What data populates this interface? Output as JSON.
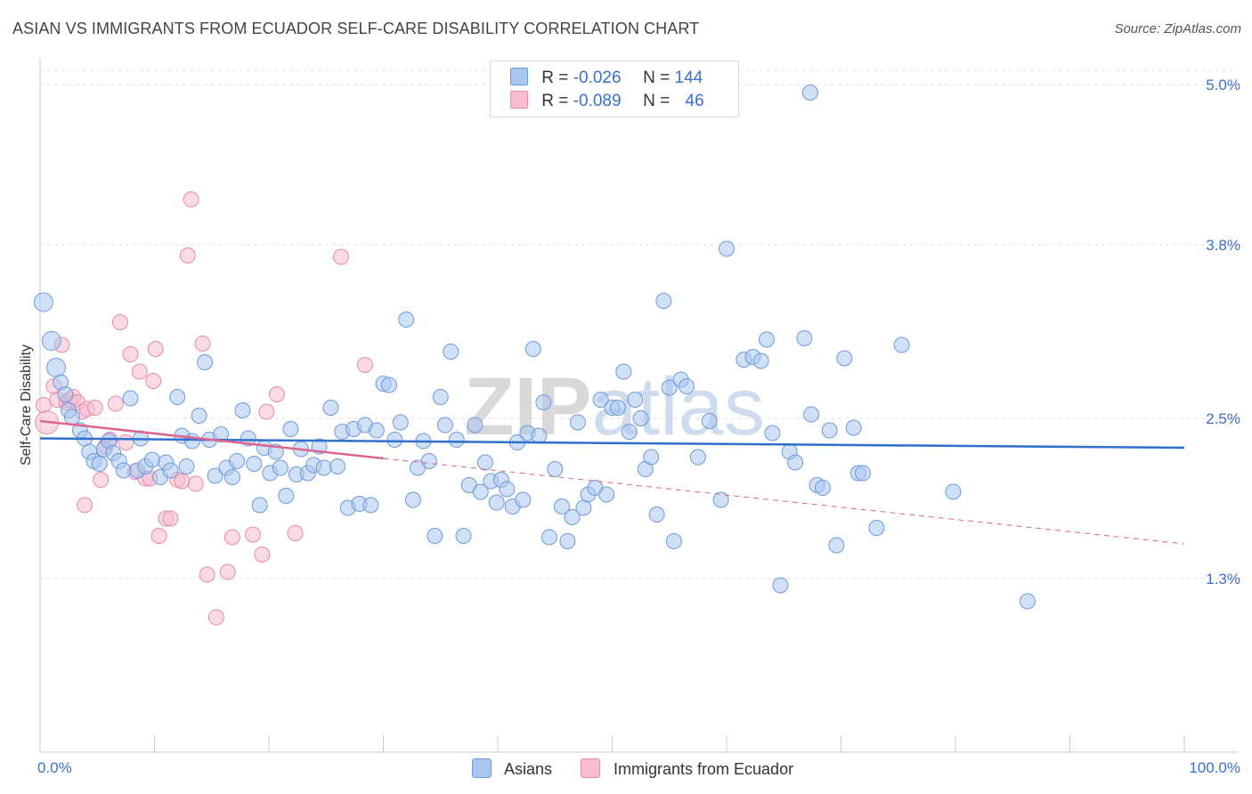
{
  "title": "ASIAN VS IMMIGRANTS FROM ECUADOR SELF-CARE DISABILITY CORRELATION CHART",
  "source": "Source: ZipAtlas.com",
  "watermark": "ZIPatlas",
  "legend": {
    "rows": [
      {
        "r_label": "R =",
        "r_value": "-0.026",
        "n_label": "N =",
        "n_value": "144"
      },
      {
        "r_label": "R =",
        "r_value": "-0.089",
        "n_label": "N =",
        "n_value": "46"
      }
    ]
  },
  "bottom_legend": {
    "series1": "Asians",
    "series2": "Immigrants from Ecuador"
  },
  "colors": {
    "blue_fill": "#a9c6f0",
    "blue_stroke": "#6f9ad9",
    "blue_line": "#2f6fce",
    "pink_fill": "#f6bcd0",
    "pink_stroke": "#e98aab",
    "pink_line": "#e0638e",
    "tick_text": "#3a6fd0",
    "grid": "#dddddd"
  },
  "chart_data": {
    "type": "scatter",
    "xlabel": "",
    "ylabel": "Self-Care Disability",
    "xlim": [
      0,
      100
    ],
    "ylim": [
      0.0,
      5.2
    ],
    "x_tick_labels": [
      "0.0%",
      "100.0%"
    ],
    "y_ticks": [
      1.3,
      2.5,
      3.8,
      5.0
    ],
    "y_tick_labels": [
      "1.3%",
      "2.5%",
      "3.8%",
      "5.0%"
    ],
    "grid": true,
    "legend_position": "top-center",
    "series": [
      {
        "name": "Asians",
        "r": -0.026,
        "n": 144,
        "trend": {
          "x0": 0,
          "y0": 2.35,
          "x1": 100,
          "y1": 2.28
        },
        "points": [
          [
            0.3,
            3.37
          ],
          [
            1.0,
            3.08
          ],
          [
            1.4,
            2.88
          ],
          [
            1.8,
            2.77
          ],
          [
            2.2,
            2.68
          ],
          [
            2.5,
            2.56
          ],
          [
            2.8,
            2.51
          ],
          [
            3.5,
            2.41
          ],
          [
            3.9,
            2.35
          ],
          [
            4.3,
            2.25
          ],
          [
            4.7,
            2.18
          ],
          [
            5.2,
            2.16
          ],
          [
            5.6,
            2.27
          ],
          [
            6.0,
            2.33
          ],
          [
            6.4,
            2.24
          ],
          [
            6.9,
            2.18
          ],
          [
            7.3,
            2.11
          ],
          [
            7.9,
            2.65
          ],
          [
            8.5,
            2.11
          ],
          [
            8.8,
            2.35
          ],
          [
            9.2,
            2.14
          ],
          [
            9.8,
            2.19
          ],
          [
            10.5,
            2.06
          ],
          [
            11.0,
            2.17
          ],
          [
            11.4,
            2.11
          ],
          [
            12.0,
            2.66
          ],
          [
            12.4,
            2.37
          ],
          [
            12.8,
            2.14
          ],
          [
            13.3,
            2.33
          ],
          [
            13.9,
            2.52
          ],
          [
            14.4,
            2.92
          ],
          [
            14.8,
            2.34
          ],
          [
            15.3,
            2.07
          ],
          [
            15.8,
            2.38
          ],
          [
            16.3,
            2.13
          ],
          [
            16.8,
            2.06
          ],
          [
            17.2,
            2.18
          ],
          [
            17.7,
            2.56
          ],
          [
            18.2,
            2.35
          ],
          [
            18.7,
            2.16
          ],
          [
            19.2,
            1.85
          ],
          [
            19.6,
            2.28
          ],
          [
            20.1,
            2.09
          ],
          [
            20.6,
            2.25
          ],
          [
            21.0,
            2.13
          ],
          [
            21.5,
            1.92
          ],
          [
            21.9,
            2.42
          ],
          [
            22.4,
            2.08
          ],
          [
            22.8,
            2.27
          ],
          [
            23.4,
            2.09
          ],
          [
            23.9,
            2.15
          ],
          [
            24.4,
            2.29
          ],
          [
            24.8,
            2.13
          ],
          [
            25.4,
            2.58
          ],
          [
            26.0,
            2.14
          ],
          [
            26.4,
            2.4
          ],
          [
            26.9,
            1.83
          ],
          [
            27.4,
            2.42
          ],
          [
            27.9,
            1.86
          ],
          [
            28.4,
            2.45
          ],
          [
            28.9,
            1.85
          ],
          [
            29.4,
            2.41
          ],
          [
            30.0,
            2.76
          ],
          [
            30.5,
            2.75
          ],
          [
            31.0,
            2.34
          ],
          [
            31.5,
            2.47
          ],
          [
            32.0,
            3.24
          ],
          [
            32.6,
            1.89
          ],
          [
            33.0,
            2.13
          ],
          [
            33.5,
            2.33
          ],
          [
            34.0,
            2.18
          ],
          [
            34.5,
            1.62
          ],
          [
            35.0,
            2.66
          ],
          [
            35.4,
            2.45
          ],
          [
            35.9,
            3.0
          ],
          [
            36.4,
            2.34
          ],
          [
            37.0,
            1.62
          ],
          [
            37.5,
            2.0
          ],
          [
            38.0,
            2.45
          ],
          [
            38.5,
            1.95
          ],
          [
            38.9,
            2.17
          ],
          [
            39.4,
            2.03
          ],
          [
            39.9,
            1.87
          ],
          [
            40.3,
            2.04
          ],
          [
            40.8,
            1.97
          ],
          [
            41.3,
            1.84
          ],
          [
            41.7,
            2.32
          ],
          [
            42.2,
            1.89
          ],
          [
            42.6,
            2.39
          ],
          [
            43.1,
            3.02
          ],
          [
            43.6,
            2.37
          ],
          [
            44.0,
            2.62
          ],
          [
            44.5,
            1.61
          ],
          [
            45.0,
            2.12
          ],
          [
            45.6,
            1.84
          ],
          [
            46.1,
            1.58
          ],
          [
            46.5,
            1.76
          ],
          [
            47.0,
            2.47
          ],
          [
            47.5,
            1.83
          ],
          [
            47.9,
            1.93
          ],
          [
            48.5,
            1.98
          ],
          [
            49.0,
            2.64
          ],
          [
            49.5,
            1.93
          ],
          [
            50.0,
            2.58
          ],
          [
            50.5,
            2.58
          ],
          [
            51.0,
            2.85
          ],
          [
            51.5,
            2.4
          ],
          [
            52.0,
            2.64
          ],
          [
            52.5,
            2.5
          ],
          [
            52.9,
            2.12
          ],
          [
            53.4,
            2.21
          ],
          [
            53.9,
            1.78
          ],
          [
            54.5,
            3.38
          ],
          [
            55.0,
            2.73
          ],
          [
            55.4,
            1.58
          ],
          [
            56.0,
            2.79
          ],
          [
            56.5,
            2.74
          ],
          [
            57.5,
            2.21
          ],
          [
            58.5,
            2.48
          ],
          [
            59.5,
            1.89
          ],
          [
            60.0,
            3.77
          ],
          [
            61.5,
            2.94
          ],
          [
            62.3,
            2.96
          ],
          [
            63.0,
            2.93
          ],
          [
            63.5,
            3.09
          ],
          [
            64.0,
            2.39
          ],
          [
            64.7,
            1.25
          ],
          [
            65.5,
            2.25
          ],
          [
            66.0,
            2.17
          ],
          [
            66.8,
            3.1
          ],
          [
            67.4,
            2.53
          ],
          [
            67.9,
            2.0
          ],
          [
            68.4,
            1.98
          ],
          [
            69.0,
            2.41
          ],
          [
            69.6,
            1.55
          ],
          [
            70.3,
            2.95
          ],
          [
            71.1,
            2.43
          ],
          [
            71.5,
            2.09
          ],
          [
            71.9,
            2.09
          ],
          [
            73.1,
            1.68
          ],
          [
            75.3,
            3.05
          ],
          [
            79.8,
            1.95
          ],
          [
            86.3,
            1.13
          ],
          [
            67.3,
            4.94
          ]
        ]
      },
      {
        "name": "Immigrants from Ecuador",
        "r": -0.089,
        "n": 46,
        "trend": {
          "x0": 0,
          "y0": 2.48,
          "x1": 30,
          "y1": 2.2
        },
        "trend_ext": {
          "x0": 30,
          "y0": 2.2,
          "x1": 100,
          "y1": 1.56
        },
        "points": [
          [
            0.3,
            2.6
          ],
          [
            0.6,
            2.47
          ],
          [
            1.2,
            2.74
          ],
          [
            1.5,
            2.64
          ],
          [
            1.9,
            3.05
          ],
          [
            2.3,
            2.62
          ],
          [
            2.6,
            2.64
          ],
          [
            2.9,
            2.66
          ],
          [
            3.3,
            2.62
          ],
          [
            3.7,
            2.55
          ],
          [
            4.1,
            2.57
          ],
          [
            3.9,
            1.85
          ],
          [
            4.8,
            2.58
          ],
          [
            5.3,
            2.04
          ],
          [
            5.7,
            2.29
          ],
          [
            6.1,
            2.34
          ],
          [
            6.6,
            2.61
          ],
          [
            7.0,
            3.22
          ],
          [
            7.5,
            2.32
          ],
          [
            7.9,
            2.98
          ],
          [
            8.3,
            2.1
          ],
          [
            8.7,
            2.85
          ],
          [
            9.2,
            2.05
          ],
          [
            9.6,
            2.05
          ],
          [
            9.9,
            2.78
          ],
          [
            10.1,
            3.02
          ],
          [
            10.4,
            1.62
          ],
          [
            11.0,
            1.75
          ],
          [
            11.4,
            1.75
          ],
          [
            12.0,
            2.04
          ],
          [
            12.4,
            2.03
          ],
          [
            12.9,
            3.72
          ],
          [
            13.2,
            4.14
          ],
          [
            13.6,
            2.01
          ],
          [
            14.2,
            3.06
          ],
          [
            14.6,
            1.33
          ],
          [
            15.4,
            1.01
          ],
          [
            16.4,
            1.35
          ],
          [
            16.8,
            1.61
          ],
          [
            18.6,
            1.63
          ],
          [
            19.4,
            1.48
          ],
          [
            19.8,
            2.55
          ],
          [
            20.7,
            2.68
          ],
          [
            22.3,
            1.64
          ],
          [
            26.3,
            3.71
          ],
          [
            28.4,
            2.9
          ]
        ]
      }
    ]
  }
}
